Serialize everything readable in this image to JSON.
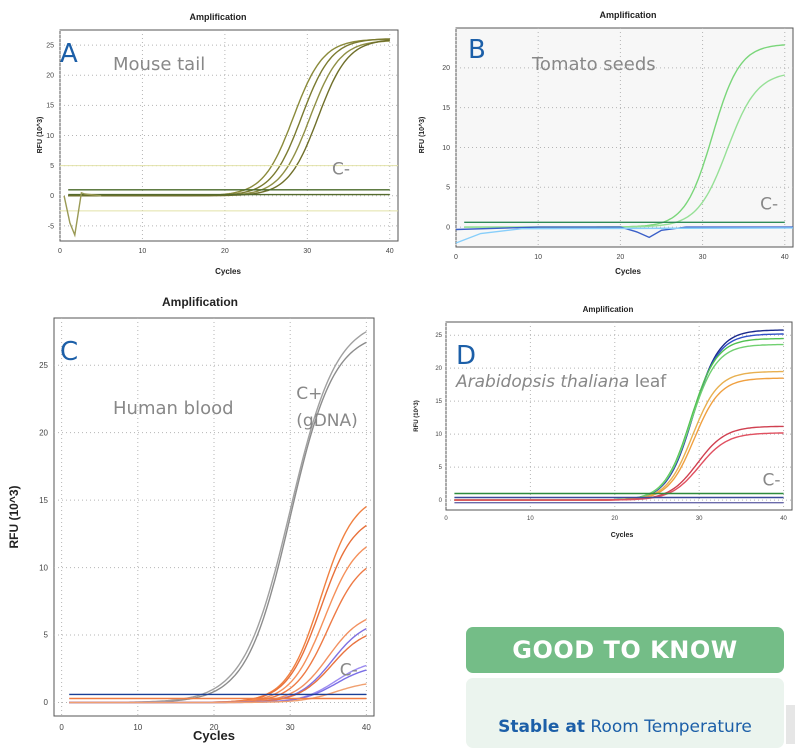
{
  "chart_data": [
    {
      "id": "A",
      "type": "line",
      "title": "Amplification",
      "panel_label": "A",
      "sample": "Mouse tail",
      "xlabel": "Cycles",
      "ylabel": "RFU (10^3)",
      "xlim": [
        0,
        41
      ],
      "ylim": [
        -7.5,
        27.5
      ],
      "xticks": [
        0,
        10,
        20,
        30,
        40
      ],
      "yticks": [
        -5,
        0,
        5,
        10,
        15,
        20,
        25
      ],
      "grid": "dotted",
      "background": "#ffffff",
      "annotations": [
        {
          "text": "C-",
          "x": 33,
          "y": 3.5
        }
      ],
      "series": [
        {
          "kind": "sig",
          "max": 26,
          "mid": 28.3,
          "k": 0.55,
          "color": "#8a8a3a"
        },
        {
          "kind": "sig",
          "max": 26.1,
          "mid": 29.3,
          "k": 0.55,
          "color": "#7a7a30"
        },
        {
          "kind": "sig",
          "max": 25.8,
          "mid": 30.3,
          "k": 0.55,
          "color": "#8f8f45"
        },
        {
          "kind": "sig",
          "max": 26,
          "mid": 31.3,
          "k": 0.55,
          "color": "#6f6f2a"
        },
        {
          "kind": "flat",
          "y": 1,
          "color": "#4a6a2a"
        },
        {
          "kind": "flat",
          "y": 0.2,
          "color": "#556b2f"
        },
        {
          "kind": "hline",
          "y": 5,
          "color": "#e2e2a8"
        },
        {
          "kind": "hline",
          "y": -2.5,
          "color": "#e2e2a8"
        },
        {
          "kind": "pts",
          "color": "#9a9a55",
          "points": [
            [
              0.5,
              0
            ],
            [
              1.2,
              -4.5
            ],
            [
              1.8,
              -6.5
            ],
            [
              2.2,
              -3
            ],
            [
              2.6,
              0.5
            ],
            [
              3,
              0.3
            ],
            [
              5,
              0
            ]
          ]
        }
      ]
    },
    {
      "id": "B",
      "type": "line",
      "title": "Amplification",
      "panel_label": "B",
      "sample": "Tomato seeds",
      "xlabel": "Cycles",
      "ylabel": "RFU (10^3)",
      "xlim": [
        0,
        41
      ],
      "ylim": [
        -2.5,
        25
      ],
      "xticks": [
        0,
        10,
        20,
        30,
        40
      ],
      "yticks": [
        0,
        5,
        10,
        15,
        20
      ],
      "grid": "dotted",
      "background": "#f7f7f7",
      "annotations": [
        {
          "text": "C-",
          "x": 37,
          "y": 2.2
        }
      ],
      "series": [
        {
          "kind": "sig",
          "max": 23,
          "mid": 31.2,
          "k": 0.6,
          "color": "#7ad67a"
        },
        {
          "kind": "sig",
          "max": 19.5,
          "mid": 33,
          "k": 0.55,
          "color": "#96e096"
        },
        {
          "kind": "flat",
          "y": 0.6,
          "color": "#2e8b57"
        },
        {
          "kind": "pts",
          "color": "#3a5fc8",
          "points": [
            [
              0,
              -0.3
            ],
            [
              10,
              0
            ],
            [
              20,
              0
            ],
            [
              22,
              -0.6
            ],
            [
              23.5,
              -1.3
            ],
            [
              25,
              -0.4
            ],
            [
              28,
              0
            ],
            [
              41,
              0
            ]
          ]
        },
        {
          "kind": "pts",
          "color": "#87cefa",
          "points": [
            [
              0,
              -2
            ],
            [
              3,
              -0.8
            ],
            [
              8,
              -0.2
            ],
            [
              41,
              -0.1
            ]
          ]
        }
      ]
    },
    {
      "id": "C",
      "type": "line",
      "title": "Amplification",
      "panel_label": "C",
      "sample": "Human blood",
      "xlabel": "Cycles",
      "ylabel": "RFU (10^3)",
      "xlim": [
        -1,
        41
      ],
      "ylim": [
        -1,
        28.5
      ],
      "xticks": [
        0,
        10,
        20,
        30,
        40
      ],
      "yticks": [
        0,
        5,
        10,
        15,
        20,
        25
      ],
      "grid": "dotted",
      "background": "#ffffff",
      "annotations": [
        {
          "text": "C+",
          "x": 30.8,
          "y": 22.5
        },
        {
          "text": "(gDNA)",
          "x": 30.8,
          "y": 20.5
        },
        {
          "text": "C-",
          "x": 36.5,
          "y": 2
        }
      ],
      "series": [
        {
          "kind": "sig",
          "max": 27.5,
          "mid": 30,
          "k": 0.35,
          "color": "#8c8c8c"
        },
        {
          "kind": "sig",
          "max": 28.5,
          "mid": 30,
          "k": 0.33,
          "color": "#a0a0a0"
        },
        {
          "kind": "sig",
          "max": 15.5,
          "mid": 34,
          "k": 0.45,
          "color": "#f08040"
        },
        {
          "kind": "sig",
          "max": 14,
          "mid": 34,
          "k": 0.45,
          "color": "#e8703a"
        },
        {
          "kind": "sig",
          "max": 12.5,
          "mid": 34.5,
          "k": 0.45,
          "color": "#f5905a"
        },
        {
          "kind": "sig",
          "max": 11,
          "mid": 35,
          "k": 0.45,
          "color": "#ee7a45"
        },
        {
          "kind": "sig",
          "max": 6.8,
          "mid": 35,
          "k": 0.45,
          "color": "#f29060"
        },
        {
          "kind": "sig",
          "max": 6.2,
          "mid": 35.5,
          "k": 0.45,
          "color": "#8070e0"
        },
        {
          "kind": "sig",
          "max": 5.6,
          "mid": 35.5,
          "k": 0.45,
          "color": "#e9723e"
        },
        {
          "kind": "sig",
          "max": 3.2,
          "mid": 36,
          "k": 0.45,
          "color": "#9c8cf0"
        },
        {
          "kind": "sig",
          "max": 2.8,
          "mid": 36,
          "k": 0.45,
          "color": "#7a6ee6"
        },
        {
          "kind": "sig",
          "max": 1.6,
          "mid": 36,
          "k": 0.45,
          "color": "#f0a070"
        },
        {
          "kind": "flat",
          "y": 0.6,
          "color": "#1a3f96"
        },
        {
          "kind": "flat",
          "y": 0.3,
          "color": "#f07a40"
        }
      ]
    },
    {
      "id": "D",
      "type": "line",
      "title": "Amplification",
      "panel_label": "D",
      "sample_italic": "Arabidopsis thaliana",
      "sample_rest": " leaf",
      "xlabel": "Cycles",
      "ylabel": "RFU (10^3)",
      "xlim": [
        0,
        41
      ],
      "ylim": [
        -1.5,
        27
      ],
      "xticks": [
        0,
        10,
        20,
        30,
        40
      ],
      "yticks": [
        0,
        5,
        10,
        15,
        20,
        25
      ],
      "grid": "dotted",
      "background": "#ffffff",
      "annotations": [
        {
          "text": "C-",
          "x": 37.5,
          "y": 2.2
        }
      ],
      "series": [
        {
          "kind": "sig",
          "max": 25.8,
          "mid": 29.3,
          "k": 0.65,
          "color": "#1a2a8c"
        },
        {
          "kind": "sig",
          "max": 25.2,
          "mid": 29.2,
          "k": 0.65,
          "color": "#3050c8"
        },
        {
          "kind": "sig",
          "max": 24.5,
          "mid": 29,
          "k": 0.65,
          "color": "#50c050"
        },
        {
          "kind": "sig",
          "max": 23.6,
          "mid": 29,
          "k": 0.65,
          "color": "#70d070"
        },
        {
          "kind": "sig",
          "max": 19.5,
          "mid": 29.2,
          "k": 0.65,
          "color": "#e8b050"
        },
        {
          "kind": "sig",
          "max": 18.5,
          "mid": 29.4,
          "k": 0.65,
          "color": "#f0a040"
        },
        {
          "kind": "sig",
          "max": 11.2,
          "mid": 29.8,
          "k": 0.6,
          "color": "#d04050"
        },
        {
          "kind": "sig",
          "max": 10.2,
          "mid": 30,
          "k": 0.6,
          "color": "#e05060"
        },
        {
          "kind": "flat",
          "y": 1,
          "color": "#2e8b3e"
        },
        {
          "kind": "flat",
          "y": 0.4,
          "color": "#3a4a9a"
        },
        {
          "kind": "flat",
          "y": -0.4,
          "color": "#6a6aaa"
        }
      ]
    }
  ],
  "info": {
    "heading": "GOOD TO KNOW",
    "bold": "Stable at",
    "rest": " Room Temperature"
  }
}
